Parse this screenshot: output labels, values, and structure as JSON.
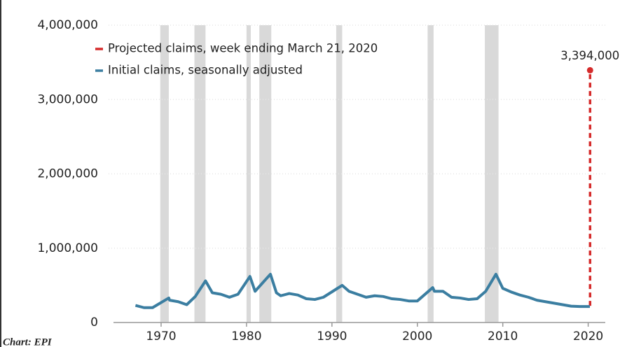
{
  "chart_data": {
    "type": "line",
    "legend": "top-left",
    "grid": true,
    "xlim": [
      1965,
      2022
    ],
    "xticks": [
      1970,
      1980,
      1990,
      2000,
      2010,
      2020
    ],
    "ylim": [
      0,
      4000000
    ],
    "yticks": [
      0,
      {
        "value": 1000000,
        "label": "1,000,000"
      },
      {
        "value": 2000000,
        "label": "2,000,000"
      },
      {
        "value": 3000000,
        "label": "3,000,000"
      },
      {
        "value": 4000000,
        "label": "4,000,000"
      }
    ],
    "recessions": [
      [
        1969.9,
        1970.9
      ],
      [
        1973.9,
        1975.2
      ],
      [
        1980.0,
        1980.5
      ],
      [
        1981.5,
        1982.9
      ],
      [
        1990.5,
        1991.2
      ],
      [
        2001.2,
        2001.9
      ],
      [
        2007.9,
        2009.5
      ]
    ],
    "recession_color": "#d9d9d9",
    "series": [
      {
        "name": "Projected claims, week ending March 21, 2020",
        "color": "#d52b2b",
        "dashed": true,
        "x": [
          2020.22,
          2020.22
        ],
        "values": [
          225000,
          3394000
        ],
        "value_labels": [
          null,
          "3,394,000"
        ]
      },
      {
        "name": "Initial claims, seasonally adjusted",
        "color": "#3b7ea1",
        "x": [
          1967,
          1968,
          1969,
          1970.9,
          1971,
          1972,
          1973,
          1974,
          1975.2,
          1976,
          1977,
          1978,
          1979,
          1980.4,
          1981,
          1982.8,
          1983.5,
          1984,
          1985,
          1986,
          1987,
          1988,
          1989,
          1991.2,
          1992,
          1993,
          1994,
          1995,
          1996,
          1997,
          1998,
          1999,
          2000,
          2001.8,
          2002,
          2003,
          2004,
          2005,
          2006,
          2007,
          2008,
          2009.2,
          2010,
          2011,
          2012,
          2013,
          2014,
          2015,
          2016,
          2017,
          2018,
          2019,
          2020.2
        ],
        "values": [
          230000,
          200000,
          200000,
          330000,
          300000,
          280000,
          240000,
          350000,
          560000,
          400000,
          380000,
          340000,
          380000,
          620000,
          420000,
          650000,
          400000,
          360000,
          390000,
          370000,
          320000,
          310000,
          340000,
          500000,
          420000,
          380000,
          340000,
          360000,
          350000,
          320000,
          310000,
          290000,
          290000,
          470000,
          420000,
          420000,
          340000,
          330000,
          310000,
          320000,
          420000,
          650000,
          460000,
          410000,
          370000,
          340000,
          300000,
          280000,
          260000,
          240000,
          220000,
          215000,
          215000
        ]
      }
    ],
    "source": "Chart: EPI"
  }
}
